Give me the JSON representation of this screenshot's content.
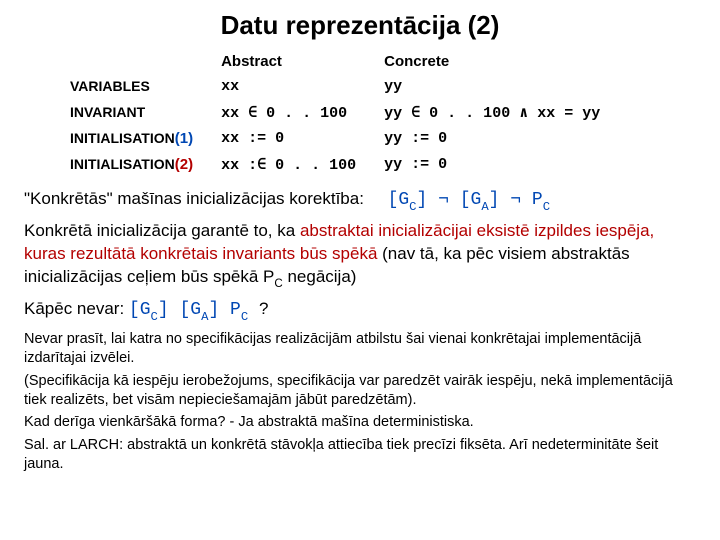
{
  "title": "Datu reprezentācija (2)",
  "colors": {
    "text": "#000000",
    "blue": "#0047b3",
    "red": "#b30000",
    "background": "#ffffff"
  },
  "fonts": {
    "body_family": "Arial",
    "mono_family": "Courier New",
    "title_size_pt": 20,
    "body_size_pt": 13,
    "small_size_pt": 11
  },
  "table": {
    "headers": {
      "blank": "",
      "abstract": "Abstract",
      "concrete": "Concrete"
    },
    "rows": [
      {
        "label": "VARIABLES",
        "idx": "",
        "abstract": "xx",
        "concrete": "yy"
      },
      {
        "label": "INVARIANT",
        "idx": "",
        "abstract": "xx  ∈  0 . . 100",
        "concrete": "yy  ∈  0 . . 100  ∧  xx = yy"
      },
      {
        "label": "INITIALISATION",
        "idx": "(1)",
        "abstract": "xx  := 0",
        "concrete": "yy  := 0"
      },
      {
        "label": "INITIALISATION",
        "idx": "(2)",
        "abstract": "xx  :∈  0 . . 100",
        "concrete": "yy  := 0"
      }
    ]
  },
  "body": {
    "line1_text": "\"Konkrētās\" mašīnas inicializācijas korektība:",
    "line1_formula_GC": "[G",
    "line1_formula_Csub": "C",
    "line1_formula_br1": "]  ¬  [G",
    "line1_formula_Asub": "A",
    "line1_formula_br2": "]  ¬  P",
    "line1_formula_Psub": "C",
    "line2_a": "Konkrētā inicializācija garantē to, ka ",
    "line2_b": "abstraktai inicializācijai eksistē izpildes iespēja, kuras rezultātā konkrētais invariants būs spēkā",
    "line2_c": "  (nav tā, ka pēc visiem abstraktās inicializācijas ceļiem būs spēkā P",
    "line2_psub": "C",
    "line2_d": " negācija)",
    "line3_a": "Kāpēc nevar:",
    "line3_f1": "  [G",
    "line3_c1": "C",
    "line3_f2": "]  [G",
    "line3_a1": "A",
    "line3_f3": "]  P",
    "line3_p1": "C",
    "line3_q": " ?",
    "para1": "Nevar prasīt, lai katra no specifikācijas realizācijām atbilstu šai vienai konkrētajai implementācijā izdarītajai izvēlei.",
    "para2": "(Specifikācija kā iespēju ierobežojums, specifikācija var paredzēt vairāk iespēju, nekā implementācijā tiek realizēts, bet visām nepieciešamajām jābūt paredzētām).",
    "para3": "Kad derīga vienkāršākā forma? - Ja abstraktā mašīna deterministiska.",
    "para4": "Sal. ar LARCH: abstraktā un konkrētā stāvokļa attiecība tiek precīzi fiksēta. Arī nedeterminitāte šeit jauna."
  }
}
